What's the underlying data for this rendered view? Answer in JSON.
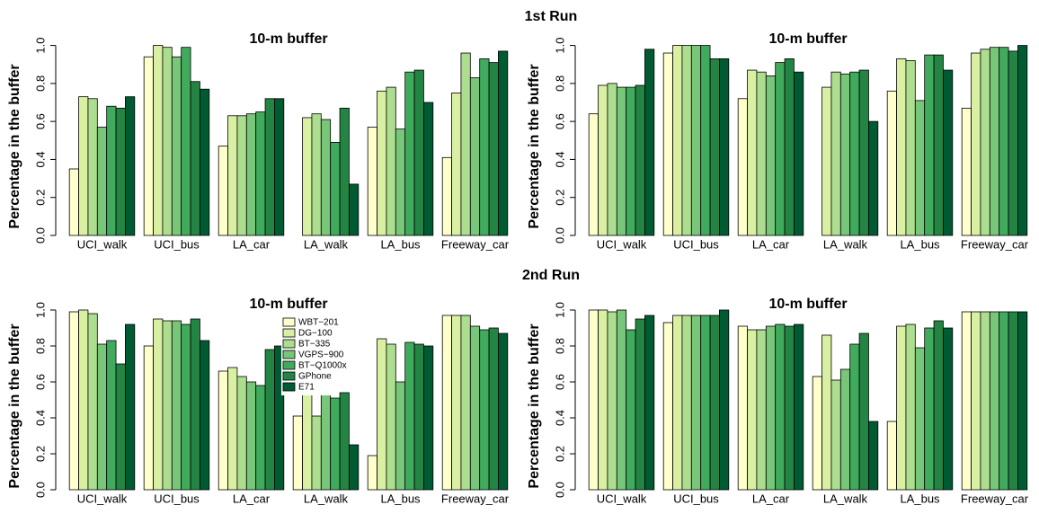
{
  "headings": [
    "1st Run",
    "2nd Run"
  ],
  "chart_data": [
    {
      "type": "bar",
      "title": "10-m buffer",
      "y_label": "Percentage in the buffer",
      "categories": [
        "UCI_walk",
        "UCI_bus",
        "LA_car",
        "LA_walk",
        "LA_bus",
        "Freeway_car"
      ],
      "ylim": [
        0,
        1.05
      ],
      "yticks": [
        {
          "value": 0,
          "label": "0.0"
        },
        0.2,
        0.4,
        0.6,
        0.8,
        {
          "value": 1,
          "label": "1.0"
        }
      ],
      "series": [
        {
          "color": "#ffffcc",
          "values": [
            0.35,
            0.94,
            0.47,
            null,
            0.57,
            0.41
          ]
        },
        {
          "color": "#d9f0a3",
          "values": [
            0.73,
            1.0,
            0.63,
            0.62,
            0.76,
            0.75
          ]
        },
        {
          "color": "#addd8e",
          "values": [
            0.72,
            0.99,
            0.63,
            0.64,
            0.78,
            0.96
          ]
        },
        {
          "color": "#78c679",
          "values": [
            0.57,
            0.94,
            0.64,
            0.61,
            0.56,
            0.83
          ]
        },
        {
          "color": "#41ab5d",
          "values": [
            0.68,
            0.99,
            0.65,
            0.49,
            0.86,
            0.93
          ]
        },
        {
          "color": "#238443",
          "values": [
            0.67,
            0.81,
            0.72,
            0.67,
            0.87,
            0.91
          ]
        },
        {
          "color": "#005a32",
          "values": [
            0.73,
            0.77,
            0.72,
            0.27,
            0.7,
            0.97
          ]
        }
      ]
    },
    {
      "type": "bar",
      "title": "10-m buffer",
      "y_label": "Percentage in the buffer",
      "categories": [
        "UCI_walk",
        "UCI_bus",
        "LA_car",
        "LA_walk",
        "LA_bus",
        "Freeway_car"
      ],
      "ylim": [
        0,
        1.05
      ],
      "yticks": [
        {
          "value": 0,
          "label": "0.0"
        },
        0.2,
        0.4,
        0.6,
        0.8,
        {
          "value": 1,
          "label": "1.0"
        }
      ],
      "series": [
        {
          "color": "#ffffcc",
          "values": [
            0.64,
            0.96,
            0.72,
            null,
            0.76,
            0.67
          ]
        },
        {
          "color": "#d9f0a3",
          "values": [
            0.79,
            1.0,
            0.87,
            0.78,
            0.93,
            0.96
          ]
        },
        {
          "color": "#addd8e",
          "values": [
            0.8,
            1.0,
            0.86,
            0.86,
            0.92,
            0.98
          ]
        },
        {
          "color": "#78c679",
          "values": [
            0.78,
            1.0,
            0.84,
            0.85,
            0.71,
            0.99
          ]
        },
        {
          "color": "#41ab5d",
          "values": [
            0.78,
            1.0,
            0.91,
            0.86,
            0.95,
            0.99
          ]
        },
        {
          "color": "#238443",
          "values": [
            0.79,
            0.93,
            0.93,
            0.87,
            0.95,
            0.97
          ]
        },
        {
          "color": "#005a32",
          "values": [
            0.98,
            0.93,
            0.86,
            0.6,
            0.87,
            1.0
          ]
        }
      ]
    },
    {
      "type": "bar",
      "title": "10-m buffer",
      "y_label": "Percentage in the buffer",
      "legend": "upper center",
      "categories": [
        "UCI_walk",
        "UCI_bus",
        "LA_car",
        "LA_walk",
        "LA_bus",
        "Freeway_car"
      ],
      "ylim": [
        0,
        1.05
      ],
      "yticks": [
        {
          "value": 0,
          "label": "0.0"
        },
        0.2,
        0.4,
        0.6,
        0.8,
        {
          "value": 1,
          "label": "1.0"
        }
      ],
      "series": [
        {
          "name": "WBT−201",
          "color": "#ffffcc",
          "values": [
            0.99,
            0.8,
            0.66,
            0.41,
            0.19,
            0.97
          ]
        },
        {
          "name": "DG−100",
          "color": "#d9f0a3",
          "values": [
            1.0,
            0.95,
            0.68,
            0.56,
            0.84,
            0.97
          ]
        },
        {
          "name": "BT−335",
          "color": "#addd8e",
          "values": [
            0.98,
            0.94,
            0.63,
            0.41,
            0.81,
            0.97
          ]
        },
        {
          "name": "VGPS−900",
          "color": "#78c679",
          "values": [
            0.81,
            0.94,
            0.6,
            0.55,
            0.6,
            0.91
          ]
        },
        {
          "name": "BT−Q1000x",
          "color": "#41ab5d",
          "values": [
            0.83,
            0.92,
            0.58,
            0.51,
            0.82,
            0.89
          ]
        },
        {
          "name": "GPhone",
          "color": "#238443",
          "values": [
            0.7,
            0.95,
            0.78,
            0.54,
            0.81,
            0.9
          ]
        },
        {
          "name": "E71",
          "color": "#005a32",
          "values": [
            0.92,
            0.83,
            0.8,
            0.25,
            0.8,
            0.87
          ]
        }
      ]
    },
    {
      "type": "bar",
      "title": "10-m buffer",
      "y_label": "Percentage in the buffer",
      "categories": [
        "UCI_walk",
        "UCI_bus",
        "LA_car",
        "LA_walk",
        "LA_bus",
        "Freeway_car"
      ],
      "ylim": [
        0,
        1.05
      ],
      "yticks": [
        {
          "value": 0,
          "label": "0.0"
        },
        0.2,
        0.4,
        0.6,
        0.8,
        {
          "value": 1,
          "label": "1.0"
        }
      ],
      "series": [
        {
          "color": "#ffffcc",
          "values": [
            1.0,
            0.93,
            0.91,
            0.63,
            0.38,
            0.99
          ]
        },
        {
          "color": "#d9f0a3",
          "values": [
            1.0,
            0.97,
            0.89,
            0.86,
            0.91,
            0.99
          ]
        },
        {
          "color": "#addd8e",
          "values": [
            0.99,
            0.97,
            0.89,
            0.61,
            0.92,
            0.99
          ]
        },
        {
          "color": "#78c679",
          "values": [
            1.0,
            0.97,
            0.91,
            0.67,
            0.79,
            0.99
          ]
        },
        {
          "color": "#41ab5d",
          "values": [
            0.89,
            0.97,
            0.92,
            0.81,
            0.9,
            0.99
          ]
        },
        {
          "color": "#238443",
          "values": [
            0.95,
            0.97,
            0.91,
            0.87,
            0.94,
            0.99
          ]
        },
        {
          "color": "#005a32",
          "values": [
            0.97,
            1.0,
            0.92,
            0.38,
            0.9,
            0.99
          ]
        }
      ]
    }
  ]
}
